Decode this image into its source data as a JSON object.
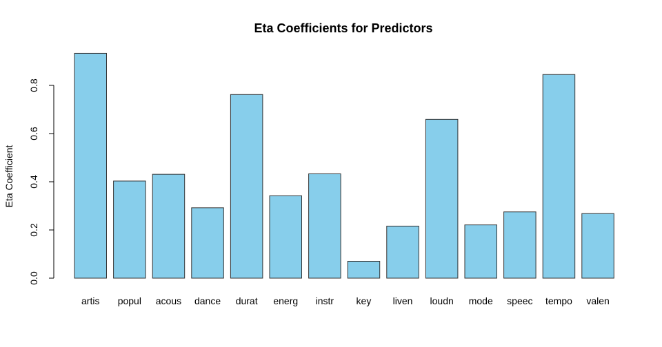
{
  "chart_data": {
    "type": "bar",
    "title": "Eta Coefficients for Predictors",
    "xlabel": "",
    "ylabel": "Eta Coefficient",
    "categories": [
      "artis",
      "popul",
      "acous",
      "dance",
      "durat",
      "energ",
      "instr",
      "key",
      "liven",
      "loudn",
      "mode",
      "speec",
      "tempo",
      "valen"
    ],
    "values": [
      0.933,
      0.403,
      0.431,
      0.292,
      0.762,
      0.342,
      0.433,
      0.07,
      0.216,
      0.659,
      0.221,
      0.275,
      0.845,
      0.268
    ],
    "ylim": [
      0,
      0.93
    ],
    "yticks": [
      0.0,
      0.2,
      0.4,
      0.6,
      0.8
    ],
    "ytick_labels": [
      "0.0",
      "0.2",
      "0.4",
      "0.6",
      "0.8"
    ],
    "bar_color": "#87CEEB",
    "bar_border_color": "#333333",
    "grid": false,
    "legend": "none"
  }
}
